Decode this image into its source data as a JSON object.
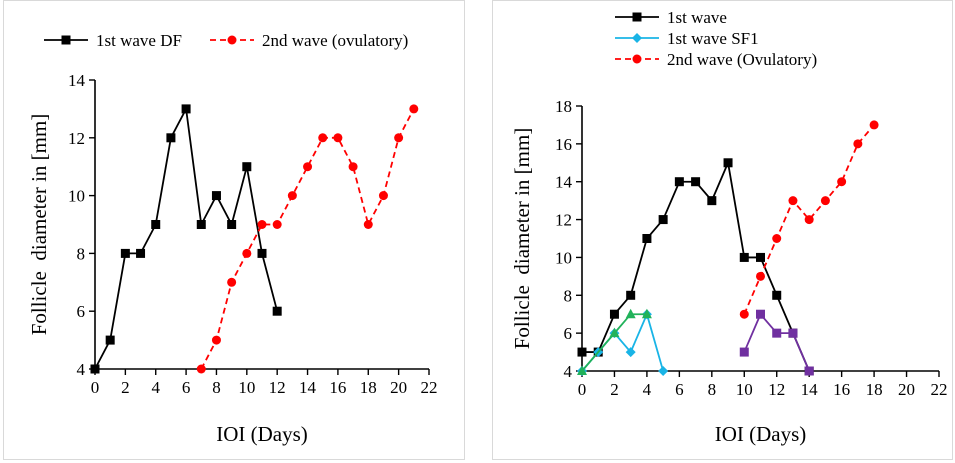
{
  "chart_data": [
    {
      "type": "line",
      "xlabel": "IOI (Days)",
      "ylabel": "Follicle  diameter in [mm]",
      "xlim": [
        0,
        22
      ],
      "ylim": [
        4,
        14
      ],
      "xticks": [
        "0",
        "2",
        "4",
        "6",
        "8",
        "10",
        "12",
        "14",
        "16",
        "18",
        "20",
        "22"
      ],
      "yticks": [
        "4",
        "6",
        "8",
        "10",
        "12",
        "14"
      ],
      "legend_position": "top",
      "grid": false,
      "series": [
        {
          "name": "1st wave DF",
          "color": "#000000",
          "marker": "square",
          "dash": "solid",
          "x": [
            0,
            1,
            2,
            3,
            4,
            5,
            6,
            7,
            8,
            9,
            10,
            11,
            12
          ],
          "y": [
            4,
            5,
            8,
            8,
            9,
            12,
            13,
            9,
            10,
            9,
            11,
            8,
            6
          ]
        },
        {
          "name": "2nd wave (ovulatory)",
          "color": "#ff0000",
          "marker": "circle",
          "dash": "dashed",
          "x": [
            7,
            8,
            9,
            10,
            11,
            12,
            13,
            14,
            15,
            16,
            17,
            18,
            19,
            20,
            21
          ],
          "y": [
            4,
            5,
            7,
            8,
            9,
            9,
            10,
            11,
            12,
            12,
            11,
            9,
            10,
            12,
            13
          ]
        }
      ]
    },
    {
      "type": "line",
      "xlabel": "IOI (Days)",
      "ylabel": "Follicle  diameter in [mm]",
      "xlim": [
        0,
        22
      ],
      "ylim": [
        4,
        18
      ],
      "xticks": [
        "0",
        "2",
        "4",
        "6",
        "8",
        "10",
        "12",
        "14",
        "16",
        "18",
        "20",
        "22"
      ],
      "yticks": [
        "4",
        "6",
        "8",
        "10",
        "12",
        "14",
        "16",
        "18"
      ],
      "legend_position": "top-left",
      "grid": false,
      "series": [
        {
          "name": "1st wave",
          "color": "#000000",
          "marker": "square",
          "dash": "solid",
          "x": [
            0,
            1,
            2,
            3,
            4,
            5,
            6,
            7,
            8,
            9,
            10,
            11,
            12,
            13,
            14
          ],
          "y": [
            5,
            5,
            7,
            8,
            11,
            12,
            14,
            14,
            13,
            15,
            10,
            10,
            8,
            6,
            4
          ]
        },
        {
          "name": "1st wave SF1",
          "color": "#19b4e6",
          "marker": "diamond",
          "dash": "solid",
          "x": [
            0,
            1,
            2,
            3,
            4,
            5
          ],
          "y": [
            4,
            5,
            6,
            5,
            7,
            4
          ]
        },
        {
          "name": "",
          "color": "#21b25a",
          "marker": "triangle",
          "dash": "solid",
          "x": [
            0,
            2,
            3,
            4
          ],
          "y": [
            4,
            6,
            7,
            7
          ]
        },
        {
          "name": "",
          "color": "#7030a0",
          "marker": "square",
          "dash": "solid",
          "x": [
            10,
            11,
            12,
            13,
            14
          ],
          "y": [
            5,
            7,
            6,
            6,
            4
          ]
        },
        {
          "name": "2nd wave (Ovulatory)",
          "color": "#ff0000",
          "marker": "circle",
          "dash": "dashed",
          "x": [
            10,
            11,
            12,
            13,
            14,
            15,
            16,
            17,
            18
          ],
          "y": [
            7,
            9,
            11,
            13,
            12,
            13,
            14,
            16,
            17
          ]
        }
      ]
    }
  ]
}
